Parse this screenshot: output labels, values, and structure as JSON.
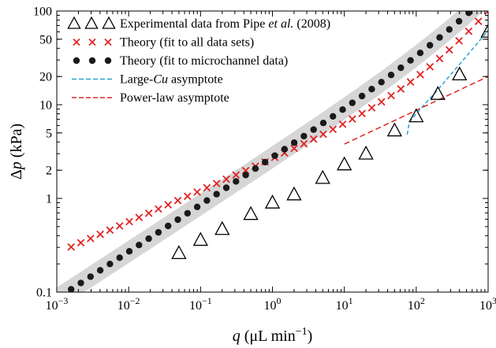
{
  "chart_data": {
    "type": "scatter",
    "xscale": "log",
    "yscale": "log",
    "xlim": [
      0.001,
      1000
    ],
    "ylim": [
      0.1,
      100
    ],
    "x_ticks": [
      0.001,
      0.01,
      0.1,
      1,
      10,
      100,
      1000
    ],
    "x_tick_labels": [
      {
        "base": "10",
        "exp": "−3"
      },
      {
        "base": "10",
        "exp": "−2"
      },
      {
        "base": "10",
        "exp": "−1"
      },
      {
        "base": "10",
        "exp": "0"
      },
      {
        "base": "10",
        "exp": "1"
      },
      {
        "base": "10",
        "exp": "2"
      },
      {
        "base": "10",
        "exp": "3"
      }
    ],
    "y_ticks": [
      0.1,
      1,
      2,
      5,
      10,
      20,
      50,
      100
    ],
    "y_tick_labels": [
      "0.1",
      "1",
      "2",
      "5",
      "10",
      "20",
      "50",
      "100"
    ],
    "xlabel": {
      "var": "q",
      "text": " (μL min",
      "exp": "−1",
      "close": ")"
    },
    "ylabel": {
      "var": "Δp",
      "text": " (kPa)"
    },
    "grid": false,
    "legend_position": "top-left",
    "series": [
      {
        "name": "Experimental data from Pipe et al. (2008)",
        "legend": {
          "pre": "Experimental data from Pipe ",
          "italic": "et al.",
          "post": " (2008)"
        },
        "marker": "open-triangle",
        "color": "#000000",
        "x": [
          0.05,
          0.1,
          0.2,
          0.5,
          1,
          2,
          5,
          10,
          20,
          50,
          100,
          200,
          400,
          1000
        ],
        "y": [
          0.26,
          0.36,
          0.47,
          0.68,
          0.9,
          1.1,
          1.65,
          2.3,
          3.0,
          5.3,
          7.5,
          13,
          21,
          60
        ]
      },
      {
        "name": "Theory (fit to all data sets)",
        "legend": {
          "pre": "Theory (fit to all data sets)",
          "italic": "",
          "post": ""
        },
        "marker": "x",
        "color": "#e02424",
        "law": {
          "x0": 0.001,
          "y0": 0.26,
          "slope": 0.333,
          "cu_slope": 1.0,
          "cu_coef": 0.074
        },
        "n_points": 44
      },
      {
        "name": "Theory (fit to microchannel data)",
        "legend": {
          "pre": "Theory (fit to microchannel data)",
          "italic": "",
          "post": ""
        },
        "marker": "filled-circle",
        "color": "#1a1a1a",
        "law": {
          "x0": 0.001,
          "y0": 0.085,
          "slope": 0.5,
          "cu_slope": 1.0,
          "cu_coef": 0.062
        },
        "n_points": 44,
        "band": {
          "color": "#d6d6d6",
          "half_width_decades": 0.12
        }
      },
      {
        "name": "Large-Cu asymptote",
        "legend": {
          "pre": "Large-",
          "italic": "Cu",
          "post": " asymptote"
        },
        "line": "dashed",
        "color": "#29a3d4",
        "x": [
          75,
          80,
          100,
          200,
          500,
          1000
        ],
        "y": [
          4.8,
          6.5,
          8.0,
          14.5,
          33,
          62
        ]
      },
      {
        "name": "Power-law asymptote",
        "legend": {
          "pre": "Power-law asymptote",
          "italic": "",
          "post": ""
        },
        "line": "dashed",
        "color": "#e02424",
        "x": [
          10,
          1000
        ],
        "y": [
          3.8,
          20
        ]
      }
    ]
  }
}
